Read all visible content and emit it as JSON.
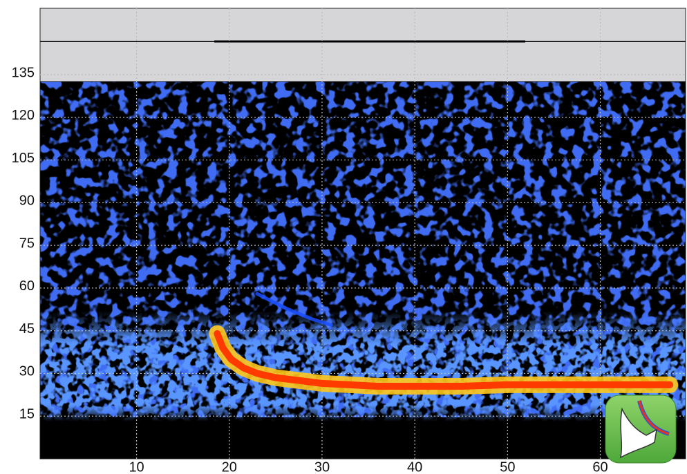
{
  "chart_data": {
    "type": "line",
    "xlim": [
      -0.4,
      69.2
    ],
    "ylim": [
      0,
      135
    ],
    "xticks": [
      10,
      20,
      30,
      40,
      50,
      60
    ],
    "yticks": [
      15,
      30,
      45,
      60,
      75,
      90,
      105,
      120,
      135
    ],
    "grid": true,
    "series": [
      {
        "color": "#ff3a00",
        "x": [
          18.7,
          19.3,
          20.2,
          21.5,
          23,
          25,
          27.5,
          30,
          33,
          36,
          40,
          45,
          50,
          55,
          60,
          64,
          67.5
        ],
        "values": [
          44,
          39,
          35,
          32,
          30,
          28.5,
          27.5,
          26.5,
          26,
          25.5,
          25.5,
          25.5,
          26,
          26,
          26,
          26,
          26
        ]
      },
      {
        "color": "#1a4dff",
        "x": [
          23,
          26,
          29,
          31
        ],
        "values": [
          58,
          53,
          49,
          47
        ]
      }
    ]
  }
}
